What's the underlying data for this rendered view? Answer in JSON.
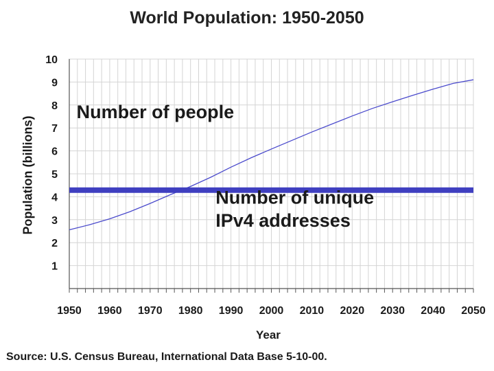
{
  "chart_data": {
    "type": "line",
    "title": "World Population: 1950-2050",
    "xlabel": "Year",
    "ylabel": "Population (billions)",
    "xlim": [
      1950,
      2050
    ],
    "ylim": [
      0,
      10
    ],
    "x_ticks": [
      "1950",
      "1960",
      "1970",
      "1980",
      "1990",
      "2000",
      "2010",
      "2020",
      "2030",
      "2040",
      "2050"
    ],
    "y_ticks": [
      "1",
      "2",
      "3",
      "4",
      "5",
      "6",
      "7",
      "8",
      "9",
      "10"
    ],
    "grid": true,
    "series": [
      {
        "name": "Number of people",
        "color": "#4a4acc",
        "x": [
          1950,
          1955,
          1960,
          1965,
          1970,
          1975,
          1980,
          1985,
          1990,
          1995,
          2000,
          2005,
          2010,
          2015,
          2020,
          2025,
          2030,
          2035,
          2040,
          2045,
          2050
        ],
        "values": [
          2.56,
          2.78,
          3.04,
          3.35,
          3.71,
          4.09,
          4.45,
          4.85,
          5.29,
          5.7,
          6.08,
          6.45,
          6.82,
          7.17,
          7.52,
          7.85,
          8.14,
          8.42,
          8.69,
          8.94,
          9.1
        ]
      },
      {
        "name": "Number of unique IPv4 addresses",
        "color": "#3f3fc0",
        "x": [
          1950,
          2050
        ],
        "values": [
          4.29,
          4.29
        ]
      }
    ],
    "annotations": [
      {
        "lines": [
          "Number of people"
        ]
      },
      {
        "lines": [
          "Number of unique",
          "IPv4 addresses"
        ]
      }
    ],
    "source": "Source: U.S. Census Bureau, International Data Base 5-10-00."
  }
}
